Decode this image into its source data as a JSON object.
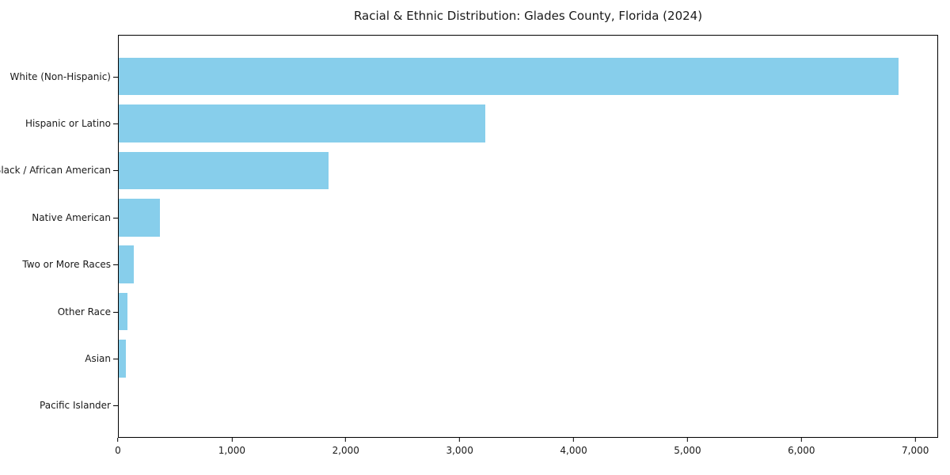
{
  "chart_data": {
    "type": "bar",
    "orientation": "horizontal",
    "title": "Racial & Ethnic Distribution: Glades County, Florida (2024)",
    "categories": [
      "White (Non-Hispanic)",
      "Hispanic or Latino",
      "Black / African American",
      "Native American",
      "Two or More Races",
      "Other Race",
      "Asian",
      "Pacific Islander"
    ],
    "values": [
      6860,
      3225,
      1845,
      365,
      130,
      80,
      60,
      0
    ],
    "xlabel": "",
    "ylabel": "",
    "xlim": [
      0,
      7200
    ],
    "x_ticks": [
      0,
      1000,
      2000,
      3000,
      4000,
      5000,
      6000,
      7000
    ],
    "x_tick_labels": [
      "0",
      "1,000",
      "2,000",
      "3,000",
      "4,000",
      "5,000",
      "6,000",
      "7,000"
    ],
    "bar_color": "#87CEEB",
    "grid": false,
    "legend": "none",
    "spines": "full-box"
  },
  "colors": {
    "background": "#ffffff",
    "bar": "#87CEEB",
    "axis": "#000000",
    "text": "#1a1a1a"
  }
}
